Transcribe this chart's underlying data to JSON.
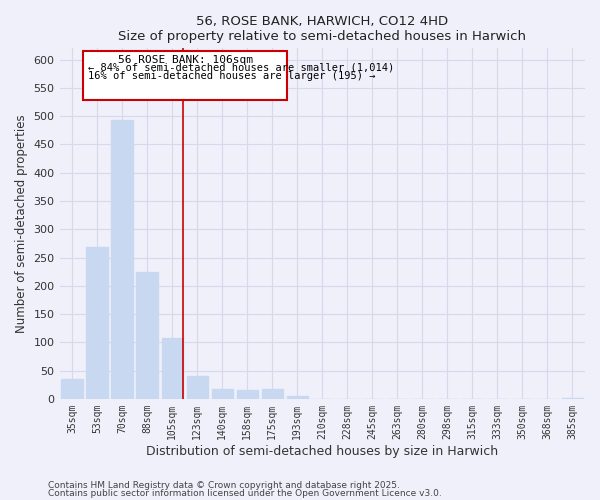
{
  "title": "56, ROSE BANK, HARWICH, CO12 4HD",
  "subtitle": "Size of property relative to semi-detached houses in Harwich",
  "xlabel": "Distribution of semi-detached houses by size in Harwich",
  "ylabel": "Number of semi-detached properties",
  "categories": [
    "35sqm",
    "53sqm",
    "70sqm",
    "88sqm",
    "105sqm",
    "123sqm",
    "140sqm",
    "158sqm",
    "175sqm",
    "193sqm",
    "210sqm",
    "228sqm",
    "245sqm",
    "263sqm",
    "280sqm",
    "298sqm",
    "315sqm",
    "333sqm",
    "350sqm",
    "368sqm",
    "385sqm"
  ],
  "values": [
    35,
    268,
    493,
    224,
    108,
    40,
    18,
    15,
    18,
    5,
    0,
    0,
    0,
    0,
    0,
    0,
    0,
    0,
    0,
    0,
    2
  ],
  "bar_color": "#c8d8f0",
  "vline_bar_index": 4,
  "vline_color": "#cc0000",
  "annotation_title": "56 ROSE BANK: 106sqm",
  "annotation_line1": "← 84% of semi-detached houses are smaller (1,014)",
  "annotation_line2": "16% of semi-detached houses are larger (195) →",
  "annotation_box_color": "#cc0000",
  "ylim": [
    0,
    620
  ],
  "yticks": [
    0,
    50,
    100,
    150,
    200,
    250,
    300,
    350,
    400,
    450,
    500,
    550,
    600
  ],
  "footnote1": "Contains HM Land Registry data © Crown copyright and database right 2025.",
  "footnote2": "Contains public sector information licensed under the Open Government Licence v3.0.",
  "bg_color": "#f0f0fa",
  "grid_color": "#d8d8ec"
}
